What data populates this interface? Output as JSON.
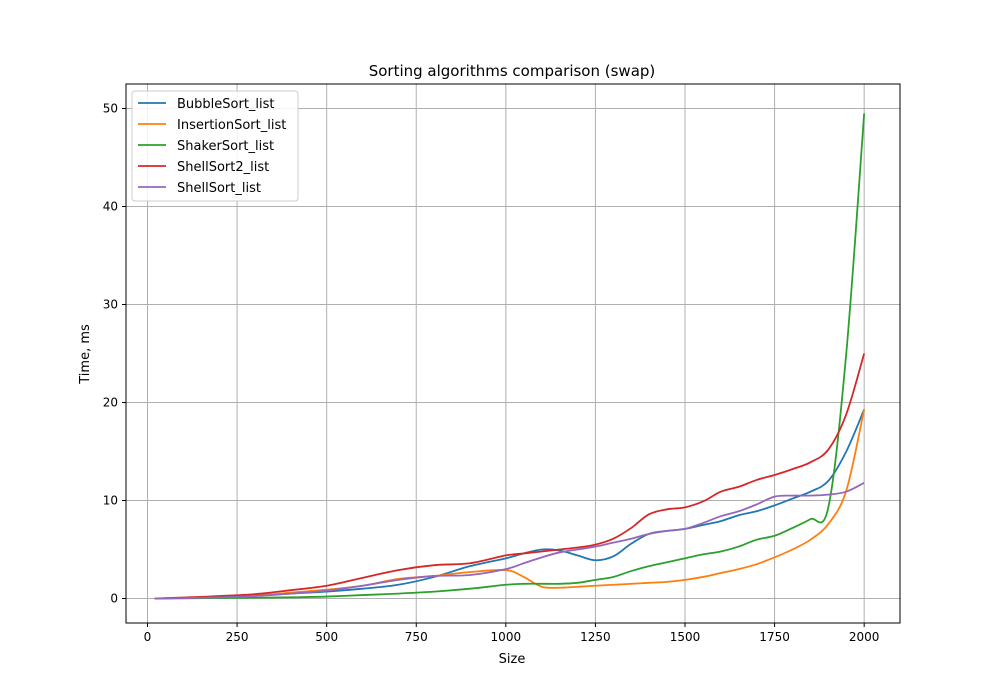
{
  "chart_data": {
    "type": "line",
    "title": "Sorting algorithms comparison (swap)",
    "xlabel": "Size",
    "ylabel": "Time, ms",
    "xlim": [
      -60,
      2100
    ],
    "ylim": [
      -2.5,
      52.5
    ],
    "xticks": [
      0,
      250,
      500,
      750,
      1000,
      1250,
      1500,
      1750,
      2000
    ],
    "yticks": [
      0,
      10,
      20,
      30,
      40,
      50
    ],
    "grid": true,
    "legend_position": "upper-left",
    "x": [
      20,
      100,
      200,
      300,
      400,
      500,
      600,
      700,
      800,
      900,
      1000,
      1050,
      1100,
      1150,
      1200,
      1250,
      1300,
      1350,
      1400,
      1450,
      1500,
      1550,
      1600,
      1650,
      1700,
      1750,
      1800,
      1850,
      1900,
      1950,
      2000
    ],
    "series": [
      {
        "name": "BubbleSort_list",
        "color": "#1f77b4",
        "values": [
          0.0,
          0.05,
          0.15,
          0.3,
          0.5,
          0.7,
          1.0,
          1.4,
          2.2,
          3.3,
          4.1,
          4.6,
          5.0,
          4.9,
          4.4,
          3.9,
          4.3,
          5.6,
          6.6,
          6.9,
          7.1,
          7.5,
          7.9,
          8.5,
          8.9,
          9.5,
          10.2,
          10.9,
          12.0,
          15.0,
          19.3
        ]
      },
      {
        "name": "InsertionSort_list",
        "color": "#ff7f0e",
        "values": [
          0.0,
          0.05,
          0.15,
          0.3,
          0.6,
          0.9,
          1.3,
          2.0,
          2.3,
          2.7,
          2.9,
          2.2,
          1.2,
          1.1,
          1.2,
          1.3,
          1.4,
          1.5,
          1.6,
          1.7,
          1.9,
          2.2,
          2.6,
          3.0,
          3.5,
          4.2,
          5.0,
          6.0,
          7.6,
          11.0,
          19.3
        ]
      },
      {
        "name": "ShakerSort_list",
        "color": "#2ca02c",
        "values": [
          0.0,
          0.02,
          0.05,
          0.08,
          0.12,
          0.2,
          0.35,
          0.5,
          0.7,
          1.0,
          1.4,
          1.5,
          1.5,
          1.5,
          1.6,
          1.9,
          2.2,
          2.8,
          3.3,
          3.7,
          4.1,
          4.5,
          4.8,
          5.3,
          6.0,
          6.4,
          7.2,
          8.1,
          9.3,
          25.0,
          49.5
        ]
      },
      {
        "name": "ShellSort2_list",
        "color": "#d62728",
        "values": [
          0.0,
          0.1,
          0.25,
          0.45,
          0.85,
          1.3,
          2.1,
          2.9,
          3.4,
          3.6,
          4.4,
          4.6,
          4.8,
          5.0,
          5.2,
          5.5,
          6.1,
          7.2,
          8.6,
          9.1,
          9.3,
          9.9,
          10.9,
          11.4,
          12.1,
          12.6,
          13.2,
          13.9,
          15.2,
          18.8,
          25.0
        ]
      },
      {
        "name": "ShellSort_list",
        "color": "#9467bd",
        "values": [
          0.0,
          0.04,
          0.12,
          0.25,
          0.5,
          0.8,
          1.3,
          1.9,
          2.3,
          2.4,
          3.0,
          3.6,
          4.2,
          4.7,
          5.0,
          5.3,
          5.7,
          6.1,
          6.6,
          6.9,
          7.1,
          7.7,
          8.4,
          8.9,
          9.6,
          10.4,
          10.5,
          10.5,
          10.6,
          10.9,
          11.8
        ]
      }
    ]
  }
}
